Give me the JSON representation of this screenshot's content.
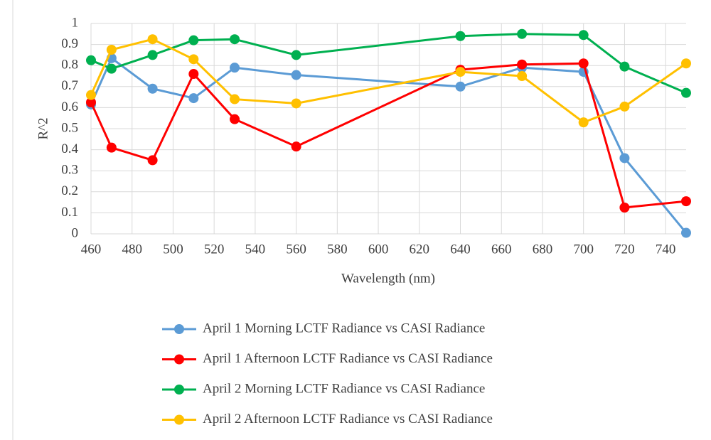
{
  "chart_data": {
    "type": "line",
    "x_label": "Wavelength (nm)",
    "y_label": "R^2",
    "x": [
      460,
      470,
      490,
      510,
      530,
      560,
      640,
      670,
      700,
      720,
      750
    ],
    "series": [
      {
        "name": "April 1 Morning LCTF Radiance vs CASI Radiance",
        "color": "#5b9bd5",
        "values": [
          0.615,
          0.835,
          0.69,
          0.645,
          0.79,
          0.755,
          0.7,
          0.79,
          0.77,
          0.36,
          0.005
        ]
      },
      {
        "name": "April 1 Afternoon LCTF Radiance vs CASI Radiance",
        "color": "#ff0000",
        "values": [
          0.625,
          0.41,
          0.35,
          0.76,
          0.545,
          0.415,
          0.78,
          0.805,
          0.81,
          0.125,
          0.155
        ]
      },
      {
        "name": "April 2 Morning LCTF Radiance vs CASI Radiance",
        "color": "#00b050",
        "values": [
          0.825,
          0.785,
          0.85,
          0.92,
          0.925,
          0.85,
          0.94,
          0.95,
          0.945,
          0.795,
          0.67
        ]
      },
      {
        "name": "April 2 Afternoon LCTF Radiance vs CASI Radiance",
        "color": "#ffc000",
        "values": [
          0.66,
          0.875,
          0.925,
          0.83,
          0.64,
          0.62,
          0.77,
          0.75,
          0.53,
          0.605,
          0.81
        ]
      }
    ],
    "xlim": [
      460,
      750
    ],
    "xticks": [
      460,
      480,
      500,
      520,
      540,
      560,
      580,
      600,
      620,
      640,
      660,
      680,
      700,
      720,
      740
    ],
    "ylim": [
      0,
      1
    ],
    "yticks": [
      0,
      0.1,
      0.2,
      0.3,
      0.4,
      0.5,
      0.6,
      0.7,
      0.8,
      0.9,
      1
    ],
    "grid": true,
    "legend": "bottom"
  }
}
